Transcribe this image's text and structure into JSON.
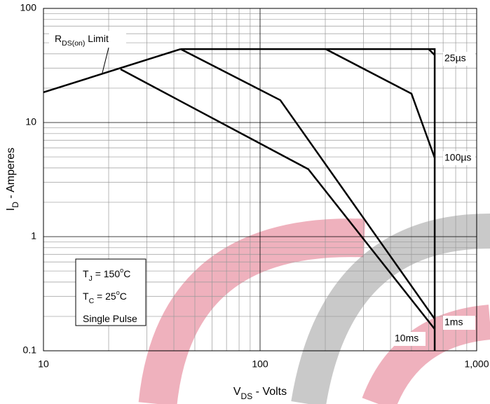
{
  "chart_data": {
    "type": "line",
    "log_x": true,
    "log_y": true,
    "grid": true,
    "xlim": [
      10,
      1000
    ],
    "ylim": [
      0.1,
      100
    ],
    "xticks": [
      10,
      100,
      {
        "value": 1000,
        "label": "1,000"
      }
    ],
    "yticks": [
      0.1,
      1,
      10,
      100
    ],
    "x_label": [
      {
        "t": "V"
      },
      {
        "t": "DS",
        "sub": true
      },
      {
        "t": " - Volts"
      }
    ],
    "y_label": [
      {
        "t": "I"
      },
      {
        "t": "D",
        "sub": true
      },
      {
        "t": " - Amperes"
      }
    ],
    "notes": [
      [
        {
          "t": "T"
        },
        {
          "t": "J",
          "sub": true
        },
        {
          "t": " = 150"
        },
        {
          "t": "o",
          "sup": true
        },
        {
          "t": "C"
        }
      ],
      [
        {
          "t": "T"
        },
        {
          "t": "C",
          "sub": true
        },
        {
          "t": " = 25"
        },
        {
          "t": "o",
          "sup": true
        },
        {
          "t": "C"
        }
      ],
      [
        {
          "t": "Single Pulse"
        }
      ]
    ],
    "series": [
      {
        "label": [
          {
            "t": "R"
          },
          {
            "t": "DS(on)",
            "sub": true
          },
          {
            "t": " Limit"
          }
        ],
        "color": "#000000",
        "x": [
          10,
          43
        ],
        "values": [
          18.4,
          44
        ]
      },
      {
        "color": "#000000",
        "x": [
          43,
          640,
          640
        ],
        "values": [
          44,
          44,
          0.1
        ]
      },
      {
        "name": "25µs",
        "color": "#000000",
        "x": [
          600,
          640
        ],
        "values": [
          44,
          39
        ]
      },
      {
        "name": "100µs",
        "color": "#000000",
        "x": [
          201,
          500,
          640
        ],
        "values": [
          44,
          17.9,
          4.9
        ]
      },
      {
        "name": "1ms",
        "color": "#000000",
        "x": [
          43,
          124,
          640
        ],
        "values": [
          44,
          15.7,
          0.19
        ]
      },
      {
        "name": "10ms",
        "color": "#000000",
        "x": [
          22.7,
          167,
          640
        ],
        "values": [
          29.3,
          3.9,
          0.155
        ]
      }
    ]
  }
}
